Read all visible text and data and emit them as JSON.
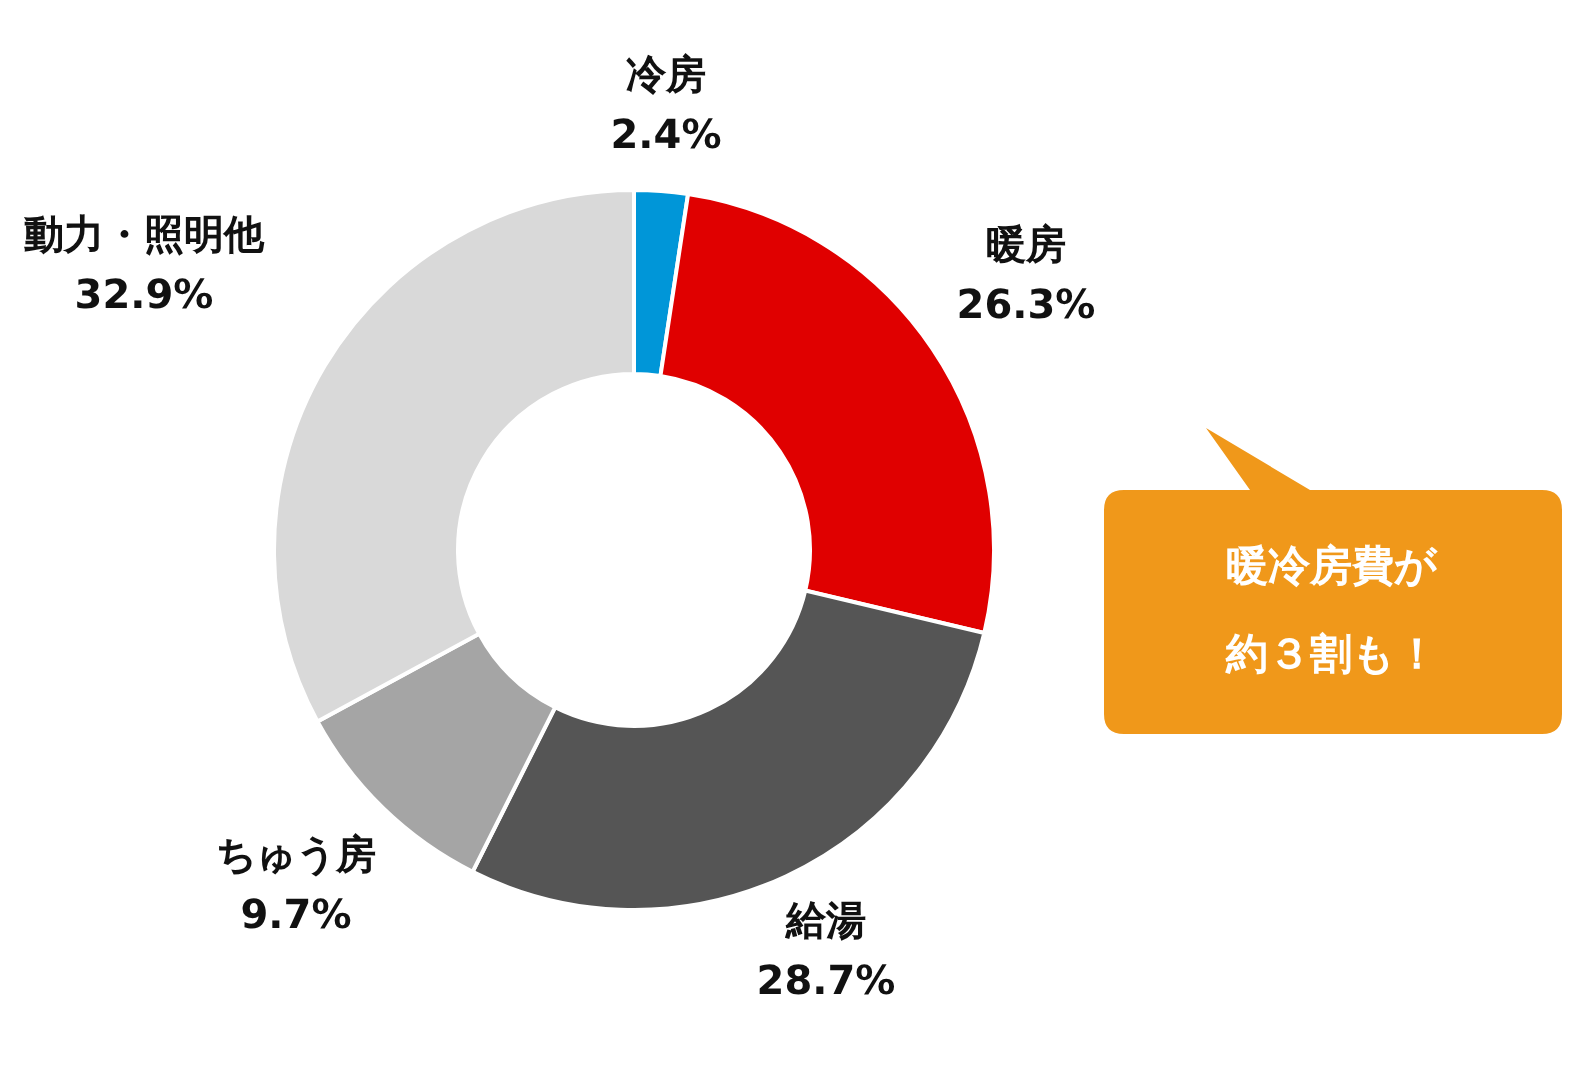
{
  "chart_data": {
    "type": "donut",
    "categories": [
      "冷房",
      "暖房",
      "給湯",
      "ちゅう房",
      "動力・照明他"
    ],
    "values": [
      2.4,
      26.3,
      28.7,
      9.7,
      32.9
    ],
    "colors": [
      "#0096d8",
      "#e00000",
      "#555555",
      "#a5a5a5",
      "#d9d9d9"
    ],
    "value_labels": [
      "2.4%",
      "26.3%",
      "28.7%",
      "9.7%",
      "32.9%"
    ],
    "annotations": [
      "暖冷房費が",
      "約３割も！"
    ]
  }
}
